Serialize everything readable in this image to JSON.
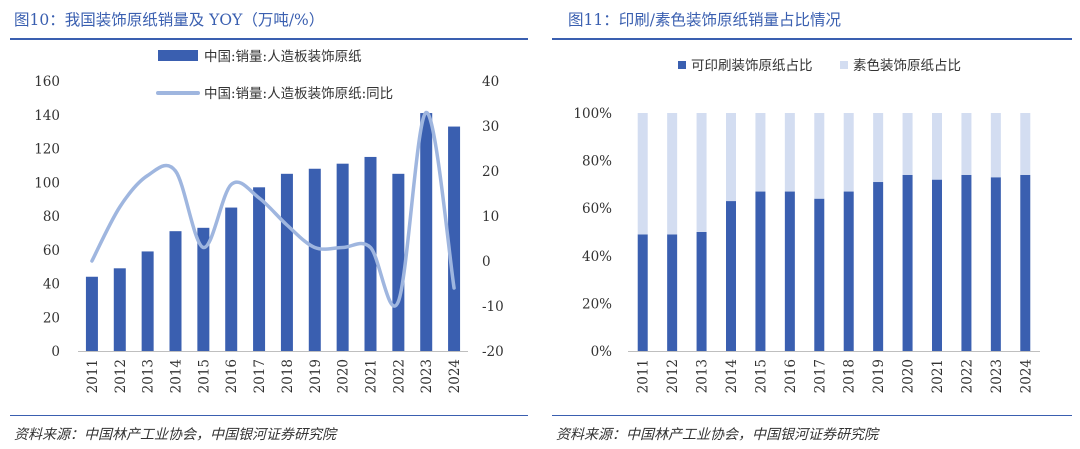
{
  "colors": {
    "dark_blue": "#3a5fb0",
    "light_blue": "#9fb6df",
    "pale_blue": "#d3ddf1",
    "title_blue": "#3a5fb0"
  },
  "left": {
    "title": "图10：我国装饰原纸销量及 YOY（万吨/%）",
    "source": "资料来源：中国林产工业协会，中国银河证券研究院",
    "chart_data": {
      "type": "bar",
      "title": "图10：我国装饰原纸销量及 YOY（万吨/%）",
      "categories": [
        "2011",
        "2012",
        "2013",
        "2014",
        "2015",
        "2016",
        "2017",
        "2018",
        "2019",
        "2020",
        "2021",
        "2022",
        "2023",
        "2024"
      ],
      "series": [
        {
          "name": "中国:销量:人造板装饰原纸",
          "type": "bar",
          "axis": "left",
          "values": [
            44,
            49,
            59,
            71,
            73,
            85,
            97,
            105,
            108,
            111,
            115,
            105,
            141,
            133
          ]
        },
        {
          "name": "中国:销量:人造板装饰原纸:同比",
          "type": "line",
          "axis": "right",
          "values": [
            0,
            12,
            19,
            20,
            3,
            17,
            14,
            8,
            3,
            3,
            3,
            -9,
            33,
            -6
          ]
        }
      ],
      "ylim_left": [
        0,
        160
      ],
      "ylim_right": [
        -20,
        40
      ],
      "yticks_left": [
        "0",
        "20",
        "40",
        "60",
        "80",
        "100",
        "120",
        "140",
        "160"
      ],
      "yticks_right": [
        "-20",
        "-10",
        "0",
        "10",
        "20",
        "30",
        "40"
      ],
      "legend": [
        "中国:销量:人造板装饰原纸",
        "中国:销量:人造板装饰原纸:同比"
      ],
      "legend_position": "top-center"
    }
  },
  "right": {
    "title": "图11：印刷/素色装饰原纸销量占比情况",
    "source": "资料来源：中国林产工业协会，中国银河证券研究院",
    "chart_data": {
      "type": "bar",
      "stacked": true,
      "title": "图11：印刷/素色装饰原纸销量占比情况",
      "categories": [
        "2011",
        "2012",
        "2013",
        "2014",
        "2015",
        "2016",
        "2017",
        "2018",
        "2019",
        "2020",
        "2021",
        "2022",
        "2023",
        "2024"
      ],
      "series": [
        {
          "name": "可印刷装饰原纸占比",
          "values": [
            49,
            49,
            50,
            63,
            67,
            67,
            64,
            67,
            71,
            74,
            72,
            74,
            73,
            74
          ]
        },
        {
          "name": "素色装饰原纸占比",
          "values": [
            51,
            51,
            50,
            37,
            33,
            33,
            36,
            33,
            29,
            26,
            28,
            26,
            27,
            26
          ]
        }
      ],
      "ylim": [
        0,
        100
      ],
      "yticks": [
        "0%",
        "20%",
        "40%",
        "60%",
        "80%",
        "100%"
      ],
      "legend": [
        "可印刷装饰原纸占比",
        "素色装饰原纸占比"
      ],
      "legend_position": "top-center"
    }
  }
}
